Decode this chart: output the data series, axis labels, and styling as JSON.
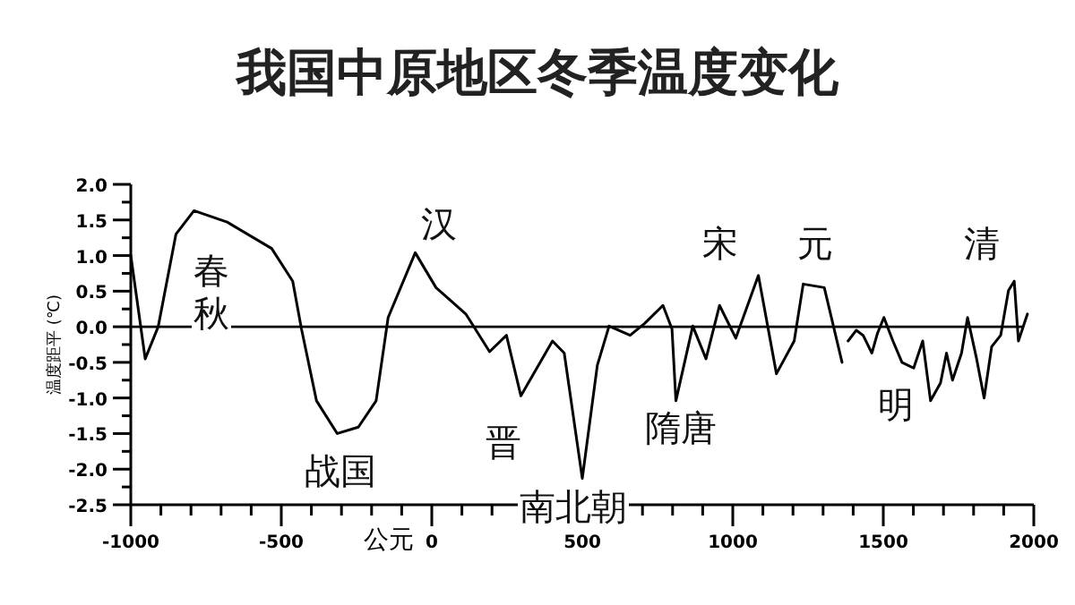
{
  "chart_data": {
    "type": "line",
    "title": "我国中原地区冬季温度变化",
    "xlabel": "公元",
    "ylabel": "温度距平 (℃)",
    "xlim": [
      -1000,
      2000
    ],
    "ylim": [
      -2.5,
      2.0
    ],
    "xticks": [
      -1000,
      -500,
      0,
      500,
      1000,
      1500,
      2000
    ],
    "yticks": [
      {
        "value": 2,
        "label": "2.0"
      },
      {
        "value": 1.5,
        "label": "1.5"
      },
      {
        "value": 1,
        "label": "1.0"
      },
      {
        "value": 0.5,
        "label": "0.5"
      },
      {
        "value": 0,
        "label": "0.0"
      },
      {
        "value": -0.5,
        "label": "-0.5"
      },
      {
        "value": -1,
        "label": "-1.0"
      },
      {
        "value": -1.5,
        "label": "-1.5"
      },
      {
        "value": -2,
        "label": "-2.0"
      },
      {
        "value": -2.5,
        "label": "-2.5"
      }
    ],
    "ref_lines": [
      {
        "axis": "y",
        "value": 0,
        "label": null
      }
    ],
    "series": [
      {
        "color": "#000000",
        "x": [
          -1000,
          -952,
          -909,
          -850,
          -790,
          -680,
          -532,
          -462,
          -433,
          -383,
          -314,
          -244,
          -185,
          -145,
          -55,
          14,
          113,
          192,
          248,
          296,
          401,
          440,
          500,
          550,
          589,
          659,
          708,
          768,
          798,
          811,
          867,
          911,
          956,
          1010,
          1085,
          1145,
          1204,
          1234,
          1304,
          1363
        ],
        "values": [
          1.0,
          -0.45,
          0.0,
          1.3,
          1.63,
          1.47,
          1.1,
          0.64,
          -0.03,
          -1.04,
          -1.5,
          -1.41,
          -1.04,
          0.13,
          1.04,
          0.55,
          0.18,
          -0.35,
          -0.12,
          -0.97,
          -0.2,
          -0.37,
          -2.13,
          -0.54,
          0.01,
          -0.12,
          0.05,
          0.3,
          -0.03,
          -1.04,
          0.01,
          -0.45,
          0.3,
          -0.16,
          0.72,
          -0.66,
          -0.2,
          0.6,
          0.55,
          -0.5
        ]
      },
      {
        "color": "#000000",
        "x": [
          1383,
          1410,
          1433,
          1462,
          1480,
          1502,
          1532,
          1562,
          1601,
          1631,
          1657,
          1690,
          1710,
          1730,
          1760,
          1780,
          1810,
          1835,
          1860,
          1890,
          1916,
          1935,
          1949,
          1979
        ],
        "values": [
          -0.2,
          -0.05,
          -0.12,
          -0.37,
          -0.1,
          0.13,
          -0.2,
          -0.5,
          -0.58,
          -0.2,
          -1.04,
          -0.79,
          -0.37,
          -0.75,
          -0.37,
          0.13,
          -0.45,
          -1.0,
          -0.28,
          -0.12,
          0.51,
          0.64,
          -0.2,
          0.18
        ]
      }
    ],
    "annotations": [
      "春秋",
      "战国",
      "汉",
      "晋",
      "南北朝",
      "隋唐",
      "宋",
      "元",
      "明",
      "清"
    ]
  }
}
